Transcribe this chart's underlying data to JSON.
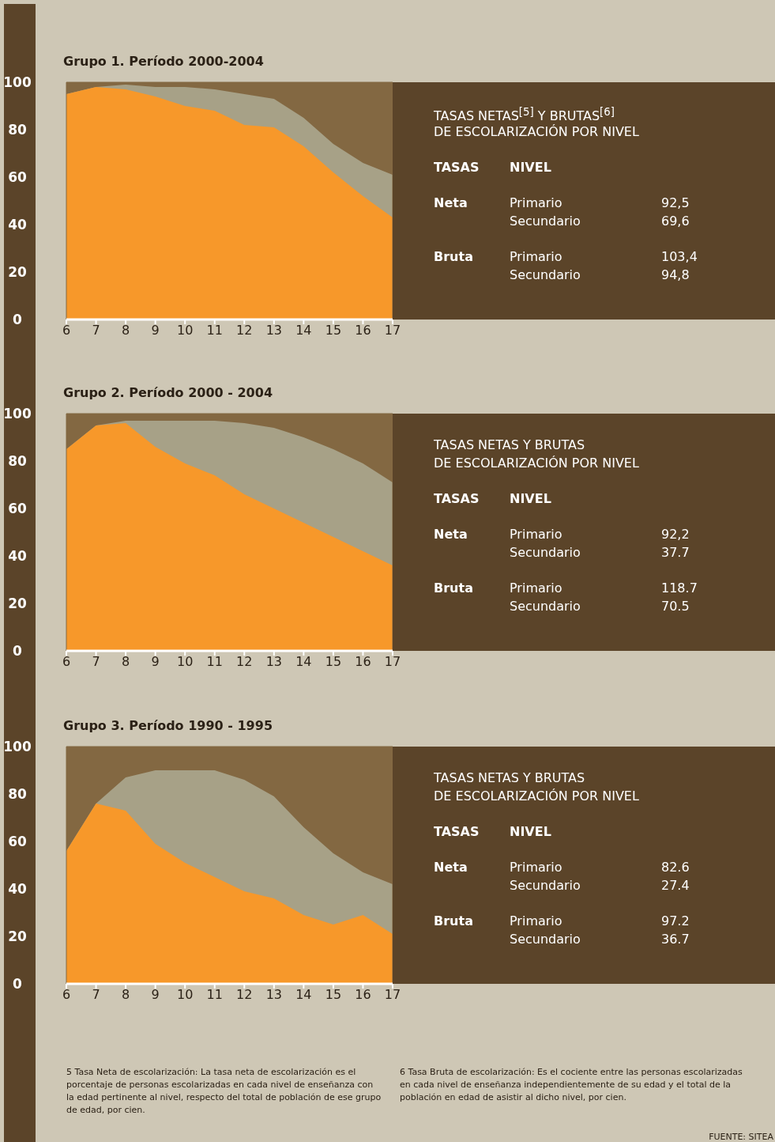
{
  "chart_data": [
    {
      "type": "area",
      "title": "Grupo 1. Período 2000-2004",
      "bands": [
        {
          "axis": "y",
          "from": 0,
          "to": 100,
          "color": "#836842"
        }
      ],
      "x": [
        6,
        7,
        8,
        9,
        10,
        11,
        12,
        13,
        14,
        15,
        16,
        17
      ],
      "xlim": [
        6,
        17
      ],
      "xticks": [
        6,
        7,
        8,
        9,
        10,
        11,
        12,
        13,
        14,
        15,
        16,
        17
      ],
      "ylim": [
        0,
        100
      ],
      "yticks": [
        0,
        20,
        40,
        60,
        80,
        100
      ],
      "series": [
        {
          "color": "#a7a187",
          "values": [
            95,
            98,
            99,
            98,
            98,
            97,
            95,
            93,
            85,
            74,
            66,
            61
          ]
        },
        {
          "color": "#f7982a",
          "values": [
            95,
            98,
            97,
            94,
            90,
            88,
            82,
            81,
            73,
            62,
            52,
            43
          ]
        }
      ],
      "annotations": [
        "TASAS NETAS$^{[5]}$ Y BRUTAS$^{[6]}$",
        "DE ESCOLARIZACIÓN POR NIVEL",
        "TASAS",
        "NIVEL",
        "Neta",
        "Primario",
        "92,5",
        "Secundario",
        "69,6",
        "Bruta",
        "Primario",
        "103,4",
        "Secundario",
        "94,8"
      ]
    },
    {
      "type": "area",
      "title": "Grupo 2. Período 2000 - 2004",
      "bands": [
        {
          "axis": "y",
          "from": 0,
          "to": 100,
          "color": "#836842"
        }
      ],
      "x": [
        6,
        7,
        8,
        9,
        10,
        11,
        12,
        13,
        14,
        15,
        16,
        17
      ],
      "xlim": [
        6,
        17
      ],
      "xticks": [
        6,
        7,
        8,
        9,
        10,
        11,
        12,
        13,
        14,
        15,
        16,
        17
      ],
      "ylim": [
        0,
        100
      ],
      "yticks": [
        0,
        20,
        40,
        60,
        80,
        100
      ],
      "series": [
        {
          "color": "#a7a187",
          "values": [
            85,
            95,
            97,
            97,
            97,
            97,
            96,
            94,
            90,
            85,
            79,
            71
          ]
        },
        {
          "color": "#f7982a",
          "values": [
            85,
            95,
            96,
            86,
            79,
            74,
            66,
            60,
            54,
            48,
            42,
            36
          ]
        }
      ],
      "annotations": [
        "TASAS NETAS Y BRUTAS",
        "DE ESCOLARIZACIÓN POR NIVEL",
        "TASAS",
        "NIVEL",
        "Neta",
        "Primario",
        "92,2",
        "Secundario",
        "37.7",
        "Bruta",
        "Primario",
        "118.7",
        "Secundario",
        "70.5"
      ]
    },
    {
      "type": "area",
      "title": "Grupo 3. Período 1990 - 1995",
      "bands": [
        {
          "axis": "y",
          "from": 0,
          "to": 100,
          "color": "#836842"
        }
      ],
      "x": [
        6,
        7,
        8,
        9,
        10,
        11,
        12,
        13,
        14,
        15,
        16,
        17
      ],
      "xlim": [
        6,
        17
      ],
      "xticks": [
        6,
        7,
        8,
        9,
        10,
        11,
        12,
        13,
        14,
        15,
        16,
        17
      ],
      "ylim": [
        0,
        100
      ],
      "yticks": [
        0,
        20,
        40,
        60,
        80,
        100
      ],
      "series": [
        {
          "color": "#a7a187",
          "values": [
            56,
            76,
            87,
            90,
            90,
            90,
            86,
            79,
            66,
            55,
            47,
            42
          ]
        },
        {
          "color": "#f7982a",
          "values": [
            56,
            76,
            73,
            59,
            51,
            45,
            39,
            36,
            29,
            25,
            29,
            21
          ]
        }
      ],
      "annotations": [
        "TASAS NETAS Y BRUTAS",
        "DE ESCOLARIZACIÓN POR NIVEL",
        "TASAS",
        "NIVEL",
        "Neta",
        "Primario",
        "82.6",
        "Secundario",
        "27.4",
        "Bruta",
        "Primario",
        "97.2",
        "Secundario",
        "36.7",
        "5 Tasa Neta de escolarización: La tasa neta de escolarización es el porcentaje de personas escolarizadas en cada nivel de enseñanza con la edad pertinente al nivel, respecto del total de población de ese grupo de edad, por cien.",
        "6 Tasa Bruta de escolarización: Es el cociente entre las personas escolarizadas en cada nivel de enseñanza independientemente de su edad y el total de la población en edad de asistir al dicho nivel, por cien.",
        "FUENTE: SITEA"
      ]
    }
  ]
}
